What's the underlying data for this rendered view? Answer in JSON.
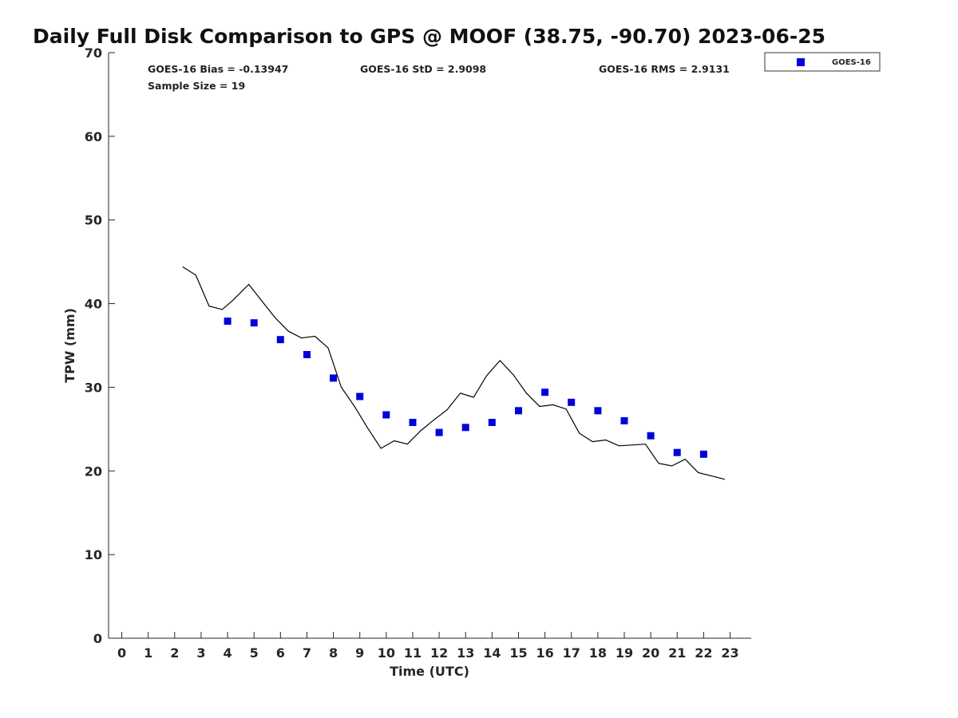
{
  "chart_data": {
    "type": "scatter",
    "title": "Daily Full Disk Comparison to GPS @ MOOF (38.75, -90.70) 2023-06-25",
    "xlabel": "Time (UTC)",
    "ylabel": "TPW (mm)",
    "xlim": [
      -0.5,
      23.8
    ],
    "ylim": [
      0,
      70
    ],
    "x_ticks": [
      "0",
      "1",
      "2",
      "3",
      "4",
      "5",
      "6",
      "7",
      "8",
      "9",
      "10",
      "11",
      "12",
      "13",
      "14",
      "15",
      "16",
      "17",
      "18",
      "19",
      "20",
      "21",
      "22",
      "23"
    ],
    "y_ticks": [
      "0",
      "10",
      "20",
      "30",
      "40",
      "50",
      "60",
      "70"
    ],
    "grid": false,
    "legend_position": "top-right",
    "colors": {
      "goes": "#0000dd",
      "gps_line": "#000000"
    },
    "stats": {
      "bias": "GOES-16 Bias = -0.13947",
      "std": "GOES-16 StD = 2.9098",
      "rms": "GOES-16 RMS = 2.9131",
      "sample": "Sample Size = 19"
    },
    "series": [
      {
        "name": "GOES-16",
        "kind": "points",
        "x": [
          4,
          5,
          6,
          7,
          8,
          9,
          10,
          11,
          12,
          13,
          14,
          15,
          16,
          17,
          18,
          19,
          20,
          21,
          22
        ],
        "y": [
          37.9,
          37.7,
          35.7,
          33.9,
          31.1,
          28.9,
          26.7,
          25.8,
          24.6,
          25.2,
          25.8,
          27.2,
          29.4,
          28.2,
          27.2,
          26.0,
          24.2,
          22.2,
          22.0
        ]
      },
      {
        "kind": "line",
        "x": [
          2.3,
          2.8,
          3.3,
          3.8,
          4.2,
          4.8,
          5.3,
          5.8,
          6.3,
          6.8,
          7.3,
          7.8,
          8.3,
          8.8,
          9.3,
          9.8,
          10.3,
          10.8,
          11.3,
          11.8,
          12.3,
          12.8,
          13.3,
          13.8,
          14.3,
          14.8,
          15.3,
          15.8,
          16.3,
          16.8,
          17.3,
          17.8,
          18.3,
          18.8,
          19.3,
          19.8,
          20.3,
          20.8,
          21.3,
          21.8,
          22.3,
          22.8
        ],
        "y": [
          44.4,
          43.4,
          39.7,
          39.3,
          40.4,
          42.3,
          40.3,
          38.3,
          36.7,
          35.9,
          36.1,
          34.7,
          30.0,
          27.7,
          25.1,
          22.7,
          23.6,
          23.2,
          24.8,
          26.1,
          27.3,
          29.3,
          28.8,
          31.4,
          33.2,
          31.5,
          29.3,
          27.7,
          27.9,
          27.4,
          24.5,
          23.5,
          23.7,
          23.0,
          23.1,
          23.2,
          20.9,
          20.6,
          21.4,
          19.8,
          19.4,
          19.0
        ]
      }
    ]
  }
}
